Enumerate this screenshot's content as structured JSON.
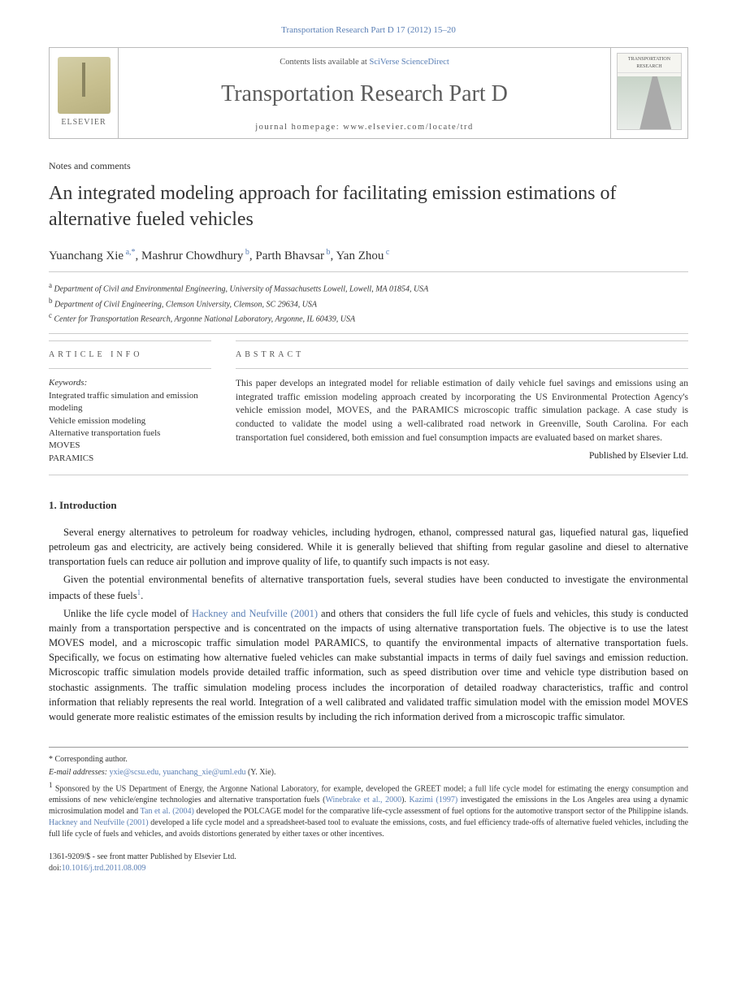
{
  "header_citation": "Transportation Research Part D 17 (2012) 15–20",
  "masthead": {
    "contents_prefix": "Contents lists available at ",
    "contents_link": "SciVerse ScienceDirect",
    "journal_name": "Transportation Research Part D",
    "homepage_prefix": "journal homepage: ",
    "homepage_url": "www.elsevier.com/locate/trd",
    "publisher_label": "ELSEVIER",
    "cover_title": "TRANSPORTATION RESEARCH"
  },
  "article_type": "Notes and comments",
  "title": "An integrated modeling approach for facilitating emission estimations of alternative fueled vehicles",
  "authors_html": "Yuanchang Xie",
  "authors": [
    {
      "name": "Yuanchang Xie",
      "sup": "a,*"
    },
    {
      "name": "Mashrur Chowdhury",
      "sup": "b"
    },
    {
      "name": "Parth Bhavsar",
      "sup": "b"
    },
    {
      "name": "Yan Zhou",
      "sup": "c"
    }
  ],
  "affiliations": [
    {
      "sup": "a",
      "text": "Department of Civil and Environmental Engineering, University of Massachusetts Lowell, Lowell, MA 01854, USA"
    },
    {
      "sup": "b",
      "text": "Department of Civil Engineering, Clemson University, Clemson, SC 29634, USA"
    },
    {
      "sup": "c",
      "text": "Center for Transportation Research, Argonne National Laboratory, Argonne, IL 60439, USA"
    }
  ],
  "article_info_heading": "ARTICLE INFO",
  "abstract_heading": "ABSTRACT",
  "keywords_label": "Keywords:",
  "keywords": [
    "Integrated traffic simulation and emission modeling",
    "Vehicle emission modeling",
    "Alternative transportation fuels",
    "MOVES",
    "PARAMICS"
  ],
  "abstract_text": "This paper develops an integrated model for reliable estimation of daily vehicle fuel savings and emissions using an integrated traffic emission modeling approach created by incorporating the US Environmental Protection Agency's vehicle emission model, MOVES, and the PARAMICS microscopic traffic simulation package. A case study is conducted to validate the model using a well-calibrated road network in Greenville, South Carolina. For each transportation fuel considered, both emission and fuel consumption impacts are evaluated based on market shares.",
  "publisher_line": "Published by Elsevier Ltd.",
  "section1_heading": "1. Introduction",
  "paragraphs": [
    "Several energy alternatives to petroleum for roadway vehicles, including hydrogen, ethanol, compressed natural gas, liquefied natural gas, liquefied petroleum gas and electricity, are actively being considered. While it is generally believed that shifting from regular gasoline and diesel to alternative transportation fuels can reduce air pollution and improve quality of life, to quantify such impacts is not easy.",
    "Given the potential environmental benefits of alternative transportation fuels, several studies have been conducted to investigate the environmental impacts of these fuels",
    "Unlike the life cycle model of |Hackney and Neufville (2001)| and others that considers the full life cycle of fuels and vehicles, this study is conducted mainly from a transportation perspective and is concentrated on the impacts of using alternative transportation fuels. The objective is to use the latest MOVES model, and a microscopic traffic simulation model PARAMICS, to quantify the environmental impacts of alternative transportation fuels. Specifically, we focus on estimating how alternative fueled vehicles can make substantial impacts in terms of daily fuel savings and emission reduction. Microscopic traffic simulation models provide detailed traffic information, such as speed distribution over time and vehicle type distribution based on stochastic assignments. The traffic simulation modeling process includes the incorporation of detailed roadway characteristics, traffic and control information that reliably represents the real world. Integration of a well calibrated and validated traffic simulation model with the emission model MOVES would generate more realistic estimates of the emission results by including the rich information derived from a microscopic traffic simulator."
  ],
  "footnotes": {
    "corresponding": "* Corresponding author.",
    "email_label": "E-mail addresses:",
    "emails": "yxie@scsu.edu, yuanchang_xie@uml.edu",
    "email_attribution": "(Y. Xie).",
    "note1_marker": "1",
    "note1_text": "Sponsored by the US Department of Energy, the Argonne National Laboratory, for example, developed the GREET model; a full life cycle model for estimating the energy consumption and emissions of new vehicle/engine technologies and alternative transportation fuels (|Winebrake et al., 2000|). |Kazimi (1997)| investigated the emissions in the Los Angeles area using a dynamic microsimulation model and |Tan et al. (2004)| developed the POLCAGE model for the comparative life-cycle assessment of fuel options for the automotive transport sector of the Philippine islands. |Hackney and Neufville (2001)| developed a life cycle model and a spreadsheet-based tool to evaluate the emissions, costs, and fuel efficiency trade-offs of alternative fueled vehicles, including the full life cycle of fuels and vehicles, and avoids distortions generated by either taxes or other incentives."
  },
  "footer": {
    "issn_line": "1361-9209/$ - see front matter Published by Elsevier Ltd.",
    "doi_label": "doi:",
    "doi": "10.1016/j.trd.2011.08.009"
  },
  "colors": {
    "link": "#5a7fb5",
    "text": "#333333",
    "rule": "#cccccc"
  }
}
